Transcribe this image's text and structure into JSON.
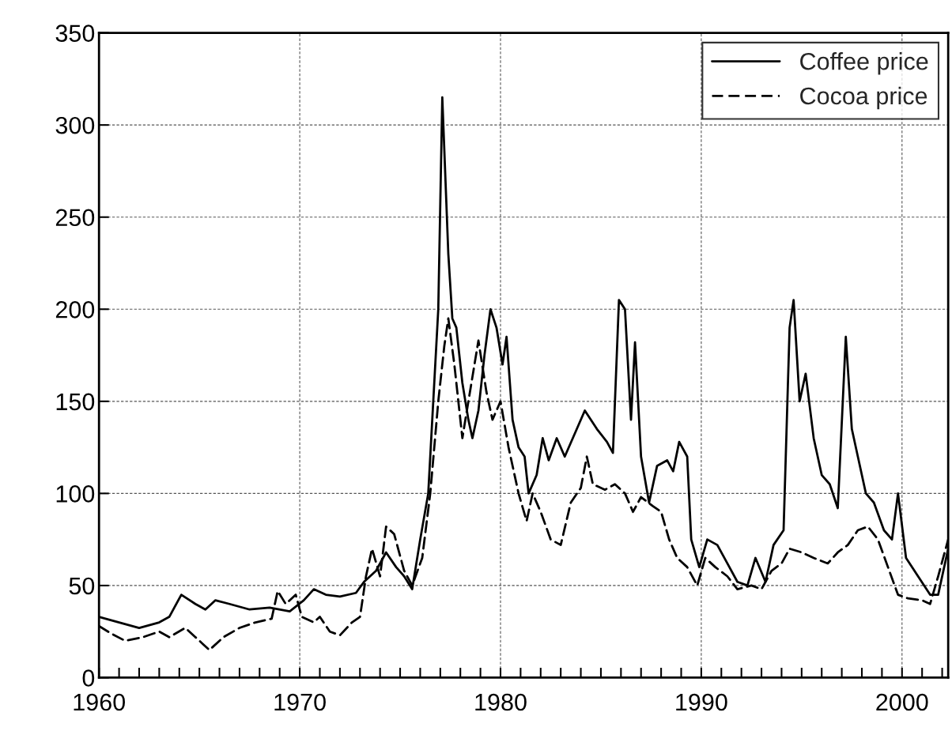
{
  "chart_data": {
    "type": "line",
    "xlim": [
      1960,
      2002.3
    ],
    "xticks": [
      1960,
      {
        "value": 1961,
        "label": null
      },
      {
        "value": 1962,
        "label": null
      },
      {
        "value": 1963,
        "label": null
      },
      {
        "value": 1964,
        "label": null
      },
      {
        "value": 1965,
        "label": null
      },
      {
        "value": 1966,
        "label": null
      },
      {
        "value": 1967,
        "label": null
      },
      {
        "value": 1968,
        "label": null
      },
      {
        "value": 1969,
        "label": null
      },
      1970,
      {
        "value": 1971,
        "label": null
      },
      {
        "value": 1972,
        "label": null
      },
      {
        "value": 1973,
        "label": null
      },
      {
        "value": 1974,
        "label": null
      },
      {
        "value": 1975,
        "label": null
      },
      {
        "value": 1976,
        "label": null
      },
      {
        "value": 1977,
        "label": null
      },
      {
        "value": 1978,
        "label": null
      },
      {
        "value": 1979,
        "label": null
      },
      1980,
      {
        "value": 1981,
        "label": null
      },
      {
        "value": 1982,
        "label": null
      },
      {
        "value": 1983,
        "label": null
      },
      {
        "value": 1984,
        "label": null
      },
      {
        "value": 1985,
        "label": null
      },
      {
        "value": 1986,
        "label": null
      },
      {
        "value": 1987,
        "label": null
      },
      {
        "value": 1988,
        "label": null
      },
      {
        "value": 1989,
        "label": null
      },
      1990,
      {
        "value": 1991,
        "label": null
      },
      {
        "value": 1992,
        "label": null
      },
      {
        "value": 1993,
        "label": null
      },
      {
        "value": 1994,
        "label": null
      },
      {
        "value": 1995,
        "label": null
      },
      {
        "value": 1996,
        "label": null
      },
      {
        "value": 1997,
        "label": null
      },
      {
        "value": 1998,
        "label": null
      },
      {
        "value": 1999,
        "label": null
      },
      2000,
      {
        "value": 2001,
        "label": null
      },
      {
        "value": 2002,
        "label": null
      }
    ],
    "ylim": [
      0,
      350
    ],
    "yticks": [
      0,
      50,
      100,
      150,
      200,
      250,
      300,
      350
    ],
    "grid": true,
    "legend": "top right",
    "series": [
      {
        "name": "Coffee price",
        "color": "#000000",
        "line_style": "solid",
        "x": [
          1960,
          1961,
          1962,
          1963,
          1963.5,
          1964.1,
          1964.8,
          1965.3,
          1965.8,
          1966.5,
          1967.5,
          1968.5,
          1969.5,
          1970.2,
          1970.7,
          1971.3,
          1972,
          1972.8,
          1973.2,
          1973.8,
          1974.3,
          1974.8,
          1975.2,
          1975.6,
          1976.0,
          1976.4,
          1976.6,
          1976.9,
          1977.1,
          1977.4,
          1977.6,
          1977.8,
          1978.1,
          1978.4,
          1978.6,
          1978.9,
          1979.2,
          1979.5,
          1979.8,
          1980.1,
          1980.3,
          1980.6,
          1980.9,
          1981.2,
          1981.4,
          1981.8,
          1982.1,
          1982.4,
          1982.8,
          1983.2,
          1983.6,
          1984.2,
          1984.8,
          1985.3,
          1985.6,
          1985.9,
          1986.2,
          1986.5,
          1986.7,
          1987.0,
          1987.4,
          1987.8,
          1988.3,
          1988.6,
          1988.9,
          1989.3,
          1989.5,
          1989.9,
          1990.3,
          1990.8,
          1991.3,
          1991.8,
          1992.3,
          1992.7,
          1993.2,
          1993.6,
          1994.1,
          1994.4,
          1994.6,
          1994.9,
          1995.2,
          1995.6,
          1996,
          1996.4,
          1996.8,
          1997.2,
          1997.5,
          1997.8,
          1998.2,
          1998.6,
          1999.1,
          1999.5,
          1999.8,
          2000.2,
          2000.8,
          2001.4,
          2001.8,
          2002.3
        ],
        "values": [
          33,
          30,
          27,
          30,
          33,
          45,
          40,
          37,
          42,
          40,
          37,
          38,
          36,
          42,
          48,
          45,
          44,
          46,
          52,
          58,
          68,
          60,
          55,
          48,
          75,
          100,
          140,
          200,
          315,
          230,
          195,
          190,
          160,
          140,
          130,
          145,
          175,
          200,
          190,
          170,
          185,
          140,
          125,
          120,
          100,
          110,
          130,
          118,
          130,
          120,
          130,
          145,
          135,
          128,
          122,
          205,
          200,
          140,
          182,
          120,
          95,
          115,
          118,
          112,
          128,
          120,
          75,
          60,
          75,
          72,
          62,
          52,
          50,
          65,
          52,
          72,
          80,
          190,
          205,
          150,
          165,
          130,
          110,
          105,
          92,
          185,
          135,
          120,
          100,
          95,
          80,
          75,
          100,
          65,
          55,
          45,
          45,
          70
        ]
      },
      {
        "name": "Cocoa price",
        "color": "#000000",
        "line_style": "dashed",
        "x": [
          1960,
          1960.6,
          1961.3,
          1962.2,
          1963,
          1963.5,
          1964.3,
          1964.8,
          1965.5,
          1966.2,
          1967,
          1967.8,
          1968.6,
          1968.9,
          1969.3,
          1969.8,
          1970.1,
          1970.7,
          1971,
          1971.5,
          1972.0,
          1972.6,
          1973.0,
          1973.3,
          1973.6,
          1974.0,
          1974.3,
          1974.7,
          1975.2,
          1975.6,
          1976.1,
          1976.5,
          1976.9,
          1977.2,
          1977.4,
          1977.7,
          1978.1,
          1978.4,
          1978.9,
          1979.3,
          1979.6,
          1980.0,
          1980.4,
          1980.9,
          1981.3,
          1981.6,
          1982,
          1982.5,
          1983,
          1983.5,
          1984.0,
          1984.3,
          1984.6,
          1985.2,
          1985.7,
          1986.2,
          1986.6,
          1987,
          1987.6,
          1988.0,
          1988.4,
          1988.8,
          1989.3,
          1989.8,
          1990.2,
          1990.7,
          1991.3,
          1991.8,
          1992.5,
          1993.0,
          1993.5,
          1994.0,
          1994.4,
          1995,
          1995.6,
          1996.3,
          1996.8,
          1997.3,
          1997.8,
          1998.3,
          1998.8,
          1999.3,
          1999.8,
          2000.3,
          2001,
          2001.4,
          2001.8,
          2002.3
        ],
        "values": [
          28,
          24,
          20,
          22,
          25,
          22,
          27,
          22,
          15,
          22,
          27,
          30,
          32,
          47,
          40,
          45,
          33,
          30,
          33,
          25,
          23,
          30,
          33,
          55,
          70,
          55,
          82,
          78,
          58,
          50,
          65,
          100,
          150,
          180,
          195,
          170,
          130,
          150,
          183,
          155,
          140,
          150,
          125,
          100,
          85,
          100,
          90,
          75,
          72,
          95,
          103,
          120,
          105,
          102,
          105,
          100,
          90,
          98,
          93,
          90,
          75,
          65,
          60,
          50,
          65,
          60,
          55,
          48,
          50,
          48,
          58,
          62,
          70,
          68,
          65,
          62,
          68,
          72,
          80,
          82,
          75,
          60,
          45,
          43,
          42,
          40,
          55,
          75
        ]
      }
    ]
  }
}
